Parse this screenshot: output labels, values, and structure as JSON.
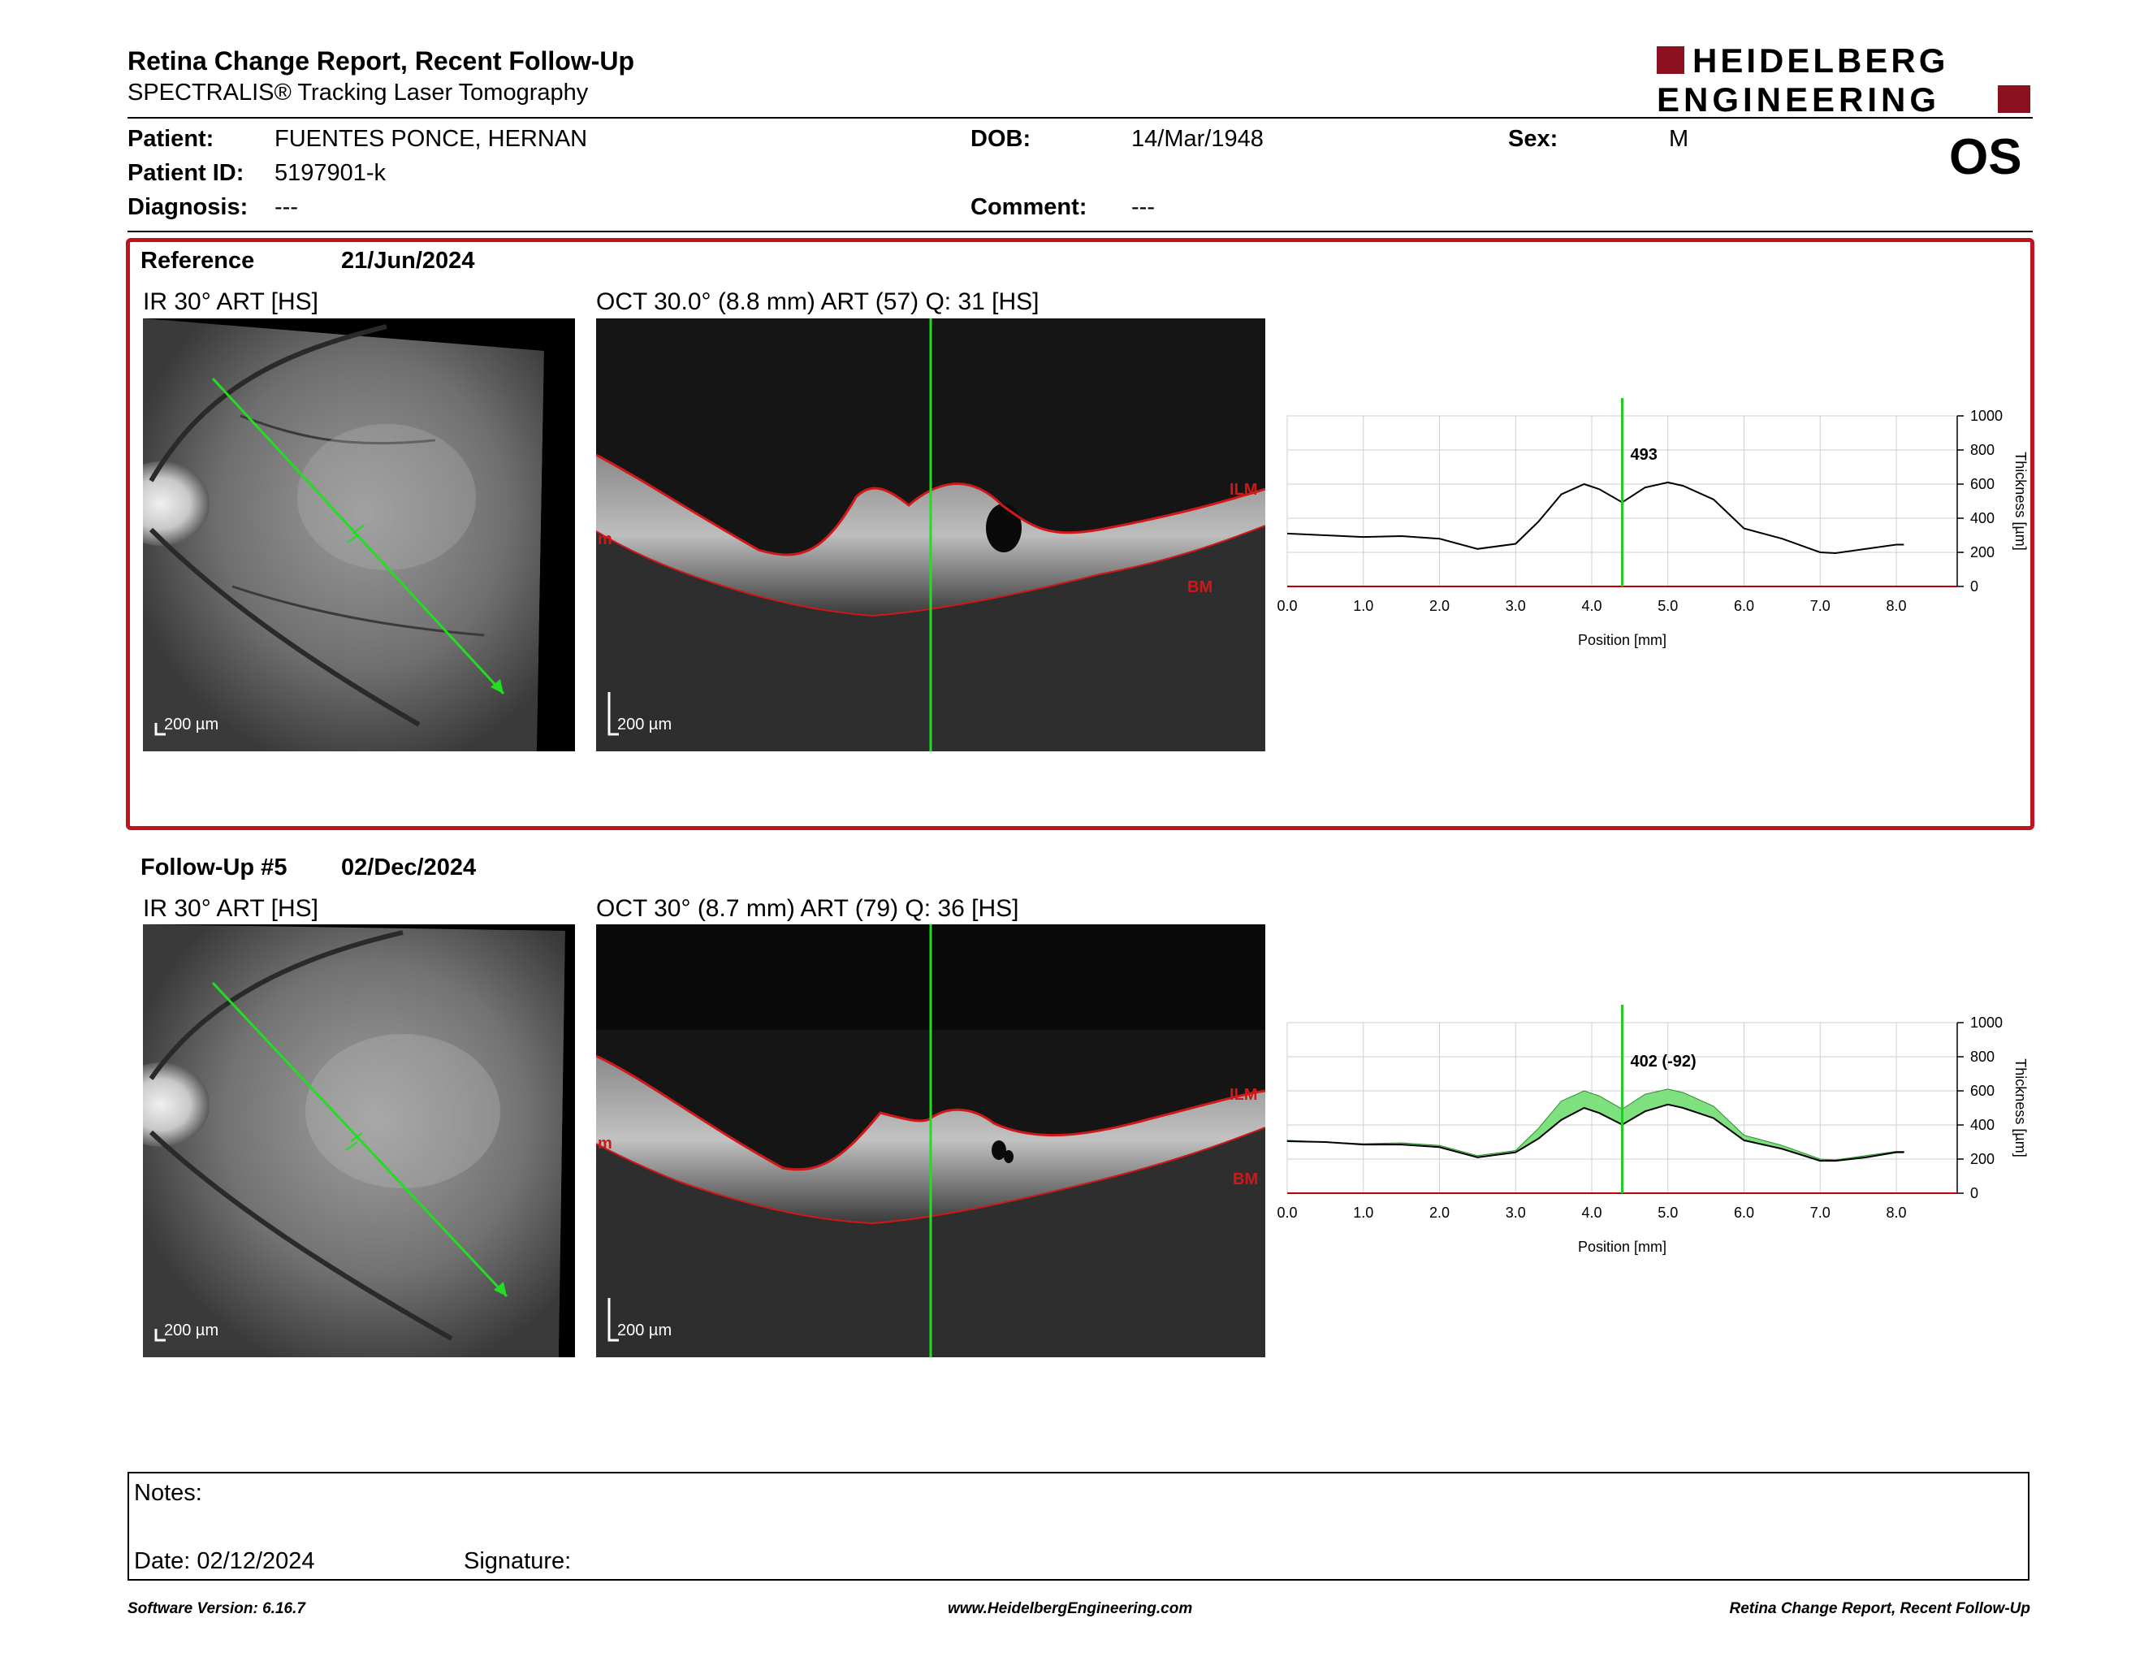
{
  "header": {
    "title": "Retina Change Report, Recent Follow-Up",
    "subtitle": "SPECTRALIS® Tracking Laser Tomography",
    "logo_line1": "HEIDELBERG",
    "logo_line2": "ENGINEERING",
    "eye": "OS"
  },
  "patient": {
    "name_label": "Patient:",
    "name": "FUENTES PONCE, HERNAN",
    "id_label": "Patient ID:",
    "id": "5197901-k",
    "diagnosis_label": "Diagnosis:",
    "diagnosis": "---",
    "dob_label": "DOB:",
    "dob": "14/Mar/1948",
    "comment_label": "Comment:",
    "comment": "---",
    "sex_label": "Sex:",
    "sex": "M"
  },
  "reference": {
    "label": "Reference",
    "date": "21/Jun/2024",
    "ir_title": "IR 30° ART [HS]",
    "oct_title": "OCT 30.0° (8.8 mm) ART (57) Q: 31 [HS]",
    "scale": "200 µm",
    "layer_top": "ILM",
    "layer_bottom": "BM",
    "layer_left": "m",
    "chart_label": "493"
  },
  "followup": {
    "label": "Follow-Up #5",
    "date": "02/Dec/2024",
    "ir_title": "IR 30° ART [HS]",
    "oct_title": "OCT 30° (8.7 mm) ART (79) Q: 36 [HS]",
    "scale": "200 µm",
    "layer_top": "ILM",
    "layer_bottom": "BM",
    "layer_left": "m",
    "chart_label": "402 (-92)"
  },
  "chart_data": [
    {
      "type": "line",
      "xlabel": "Position [mm]",
      "ylabel": "Thickness [µm]",
      "xlim": [
        0,
        8.8
      ],
      "ylim": [
        0,
        1000
      ],
      "xticks": [
        "0.0",
        "1.0",
        "2.0",
        "3.0",
        "4.0",
        "5.0",
        "6.0",
        "7.0",
        "8.0"
      ],
      "yticks": [
        "0",
        "200",
        "400",
        "600",
        "800",
        "1000"
      ],
      "grid": true,
      "cursor_x": 4.4,
      "cursor_label": "493",
      "series": [
        {
          "x": [
            0,
            0.5,
            1,
            1.5,
            2,
            2.5,
            3,
            3.3,
            3.6,
            3.9,
            4.1,
            4.4,
            4.7,
            5,
            5.2,
            5.6,
            6,
            6.5,
            7,
            7.2,
            7.6,
            8,
            8.1
          ],
          "values": [
            310,
            300,
            290,
            295,
            280,
            220,
            250,
            380,
            540,
            600,
            570,
            493,
            580,
            610,
            590,
            510,
            340,
            280,
            200,
            195,
            220,
            245,
            245
          ]
        }
      ]
    },
    {
      "type": "area",
      "xlabel": "Position [mm]",
      "ylabel": "Thickness [µm]",
      "xlim": [
        0,
        8.8
      ],
      "ylim": [
        0,
        1000
      ],
      "xticks": [
        "0.0",
        "1.0",
        "2.0",
        "3.0",
        "4.0",
        "5.0",
        "6.0",
        "7.0",
        "8.0"
      ],
      "yticks": [
        "0",
        "200",
        "400",
        "600",
        "800",
        "1000"
      ],
      "grid": true,
      "cursor_x": 4.4,
      "cursor_label": "402 (-92)",
      "series": [
        {
          "x": [
            0,
            0.5,
            1,
            1.5,
            2,
            2.5,
            3,
            3.3,
            3.6,
            3.9,
            4.1,
            4.4,
            4.7,
            5,
            5.2,
            5.6,
            6,
            6.5,
            7,
            7.2,
            7.6,
            8,
            8.1
          ],
          "values": [
            310,
            300,
            290,
            295,
            280,
            220,
            250,
            380,
            540,
            600,
            570,
            493,
            580,
            610,
            590,
            510,
            340,
            280,
            200,
            195,
            220,
            245,
            245
          ]
        },
        {
          "x": [
            0,
            0.5,
            1,
            1.5,
            2,
            2.5,
            3,
            3.3,
            3.6,
            3.9,
            4.1,
            4.4,
            4.7,
            5,
            5.2,
            5.6,
            6,
            6.5,
            7,
            7.2,
            7.6,
            8,
            8.1
          ],
          "values": [
            305,
            300,
            285,
            285,
            270,
            210,
            240,
            320,
            430,
            500,
            470,
            402,
            480,
            520,
            500,
            440,
            310,
            260,
            190,
            190,
            210,
            240,
            240
          ]
        }
      ],
      "colors": {
        "change_fill": "#7ee07e",
        "line": "#000000",
        "cursor": "#22cc22",
        "axis": "#c00000"
      }
    }
  ],
  "notes": {
    "notes_label": "Notes:",
    "date_label": "Date: 02/12/2024",
    "signature_label": "Signature:"
  },
  "footer": {
    "software": "Software Version: 6.16.7",
    "url": "www.HeidelbergEngineering.com",
    "report": "Retina Change Report, Recent Follow-Up"
  },
  "colors": {
    "brand": "#8b1020",
    "reference_border": "#c1121f",
    "scan_arrow": "#22dd22",
    "layer_line": "#d01818"
  }
}
